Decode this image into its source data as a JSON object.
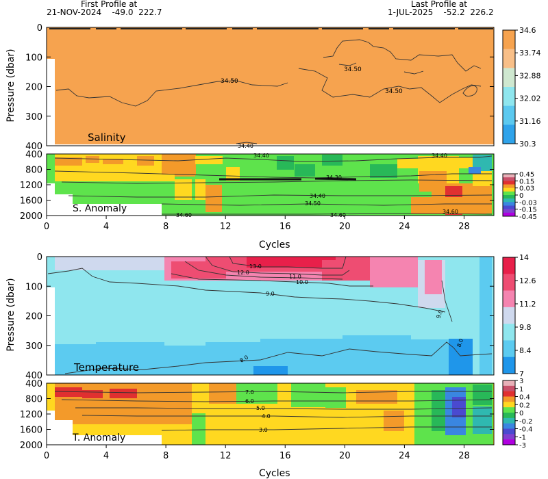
{
  "header": {
    "first_label": "First Profile at",
    "first_info": "21-NOV-2024    -49.0  222.7",
    "last_label": "Last Profile at",
    "last_info": "1-JUL-2025    -52.2  226.2"
  },
  "chart_data": [
    {
      "type": "heatmap",
      "name": "Salinity",
      "ylabel": "Pressure (dbar)",
      "yticks": [
        0,
        100,
        200,
        300,
        400
      ],
      "ylim": [
        0,
        400
      ],
      "xlim": [
        0,
        30
      ],
      "field_color": "#f6a34f",
      "contours": [
        "34.50",
        "34.50",
        "34.50",
        "34.40"
      ],
      "colorbar": {
        "labels": [
          "34.6",
          "33.74",
          "32.88",
          "32.02",
          "31.16",
          "30.3"
        ],
        "colors": [
          "#f6a34f",
          "#f8bf88",
          "#cfe8d0",
          "#8fe6ee",
          "#5cc9ef",
          "#2fa3ea"
        ]
      }
    },
    {
      "type": "heatmap",
      "name": "S. Anomaly",
      "yticks": [
        400,
        800,
        1200,
        1600,
        2000
      ],
      "ylim": [
        400,
        2000
      ],
      "xlim": [
        0,
        30
      ],
      "contours": [
        "34.40",
        "34.40",
        "34.30",
        "34.40",
        "34.50",
        "34.60",
        "34.60",
        "34.60"
      ],
      "colorbar": {
        "labels": [
          "0.45",
          "0.15",
          "0.03",
          "0",
          "-0.03",
          "-0.15",
          "-0.45"
        ],
        "colors": [
          "#e8b0b8",
          "#c8506a",
          "#e03030",
          "#f39a2a",
          "#ffd820",
          "#5ee34c",
          "#28b858",
          "#2fb8b0",
          "#3a86e0",
          "#4a4ad0",
          "#8040d0",
          "#b000e0"
        ]
      }
    },
    {
      "type": "heatmap",
      "name": "Temperature",
      "ylabel": "Pressure (dbar)",
      "yticks": [
        0,
        100,
        200,
        300,
        400
      ],
      "ylim": [
        0,
        400
      ],
      "xlim": [
        0,
        30
      ],
      "contours": [
        "13.0",
        "12.0",
        "11.0",
        "10.0",
        "9.0",
        "9.0",
        "8.0",
        "8.0",
        "8.0"
      ],
      "colorbar": {
        "labels": [
          "14",
          "12.6",
          "11.2",
          "9.8",
          "8.4",
          "7"
        ],
        "colors": [
          "#e8204a",
          "#ee4d72",
          "#f584b0",
          "#cfd9ee",
          "#8fe6ee",
          "#5ccbf0",
          "#1f96ea"
        ]
      }
    },
    {
      "type": "heatmap",
      "name": "T. Anomaly",
      "xlabel": "Cycles",
      "yticks": [
        400,
        800,
        1200,
        1600,
        2000
      ],
      "ylim": [
        400,
        2000
      ],
      "xlim": [
        0,
        30
      ],
      "xticks": [
        0,
        4,
        8,
        12,
        16,
        20,
        24,
        28
      ],
      "contours": [
        "7.0",
        "6.0",
        "5.0",
        "4.0",
        "3.0"
      ],
      "colorbar": {
        "labels": [
          "3",
          "1",
          "0.4",
          "0.2",
          "0",
          "-0.2",
          "-0.4",
          "-1",
          "-3"
        ],
        "colors": [
          "#e8b0b8",
          "#c8506a",
          "#e03030",
          "#f39a2a",
          "#ffd820",
          "#5ee34c",
          "#28b858",
          "#2fb8b0",
          "#3a86e0",
          "#4a4ad0",
          "#8040d0",
          "#b000e0"
        ]
      }
    }
  ]
}
